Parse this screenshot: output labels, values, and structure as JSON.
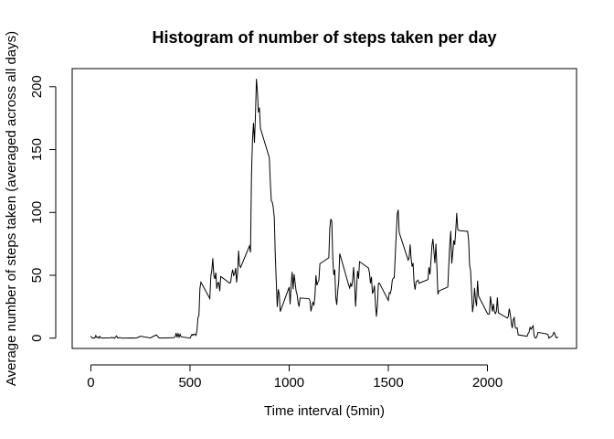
{
  "chart_data": {
    "type": "line",
    "title": "Histogram of number of steps taken per day",
    "x_label": "Time interval (5min)",
    "y_label": "Average number of steps taken (averaged across all days)",
    "x": [
      0,
      5,
      10,
      15,
      20,
      25,
      30,
      35,
      40,
      45,
      50,
      55,
      100,
      105,
      110,
      115,
      120,
      125,
      130,
      135,
      140,
      145,
      150,
      155,
      200,
      230,
      250,
      300,
      330,
      345,
      400,
      420,
      425,
      430,
      435,
      440,
      445,
      450,
      455,
      500,
      505,
      510,
      515,
      520,
      525,
      530,
      535,
      540,
      545,
      550,
      555,
      600,
      605,
      610,
      615,
      620,
      625,
      630,
      635,
      640,
      645,
      650,
      655,
      700,
      705,
      710,
      715,
      720,
      725,
      730,
      735,
      740,
      745,
      750,
      755,
      800,
      805,
      810,
      815,
      820,
      825,
      830,
      835,
      840,
      845,
      850,
      855,
      900,
      905,
      910,
      915,
      920,
      925,
      930,
      935,
      940,
      945,
      950,
      955,
      1000,
      1005,
      1010,
      1015,
      1020,
      1025,
      1030,
      1035,
      1040,
      1045,
      1050,
      1055,
      1100,
      1105,
      1110,
      1115,
      1120,
      1125,
      1130,
      1135,
      1140,
      1145,
      1150,
      1155,
      1200,
      1205,
      1210,
      1215,
      1220,
      1225,
      1230,
      1235,
      1240,
      1245,
      1250,
      1255,
      1300,
      1305,
      1310,
      1315,
      1320,
      1325,
      1330,
      1335,
      1340,
      1345,
      1350,
      1355,
      1400,
      1405,
      1410,
      1415,
      1420,
      1425,
      1430,
      1435,
      1440,
      1445,
      1450,
      1455,
      1500,
      1505,
      1510,
      1515,
      1520,
      1525,
      1530,
      1535,
      1540,
      1545,
      1550,
      1555,
      1600,
      1605,
      1610,
      1615,
      1620,
      1625,
      1630,
      1635,
      1640,
      1645,
      1650,
      1655,
      1700,
      1705,
      1710,
      1715,
      1720,
      1725,
      1730,
      1735,
      1740,
      1745,
      1750,
      1755,
      1800,
      1805,
      1810,
      1815,
      1820,
      1825,
      1830,
      1835,
      1840,
      1845,
      1850,
      1855,
      1900,
      1905,
      1910,
      1915,
      1920,
      1925,
      1930,
      1935,
      1940,
      1945,
      1950,
      1955,
      2000,
      2005,
      2010,
      2015,
      2020,
      2025,
      2030,
      2035,
      2040,
      2045,
      2050,
      2055,
      2100,
      2105,
      2110,
      2115,
      2120,
      2125,
      2130,
      2135,
      2140,
      2145,
      2150,
      2155,
      2200,
      2205,
      2210,
      2215,
      2220,
      2225,
      2230,
      2235,
      2240,
      2245,
      2250,
      2255,
      2300,
      2305,
      2310,
      2315,
      2320,
      2325,
      2330,
      2335,
      2340,
      2345,
      2350,
      2355
    ],
    "series": [
      {
        "name": "steps",
        "color": "#000000",
        "values": [
          1.7,
          0.3,
          0.1,
          0.2,
          0.1,
          2.1,
          0.5,
          0.9,
          0,
          1.5,
          0.3,
          0.1,
          0.3,
          0.7,
          0.2,
          0.3,
          0,
          1.1,
          1.8,
          0.2,
          0.2,
          0.4,
          0.3,
          0,
          0.2,
          0.1,
          1.5,
          0.2,
          2.6,
          0.1,
          0.3,
          0.4,
          1.1,
          4.1,
          0.7,
          3.5,
          0.8,
          3.1,
          1.1,
          0,
          1.6,
          3.0,
          2.2,
          3.3,
          3.0,
          2.1,
          6.1,
          16,
          18.3,
          39.5,
          44.5,
          31.5,
          49.3,
          53.8,
          63.5,
          50,
          47.1,
          52.2,
          39.3,
          44,
          44.2,
          37.4,
          49,
          43.8,
          44.4,
          50.5,
          54.5,
          49.9,
          50.9,
          55.7,
          44.3,
          52.3,
          69.5,
          57.8,
          56.2,
          73.4,
          68.2,
          129.4,
          157.5,
          171.2,
          155.4,
          177.3,
          206.2,
          195.9,
          179.6,
          183.4,
          167,
          143.5,
          124,
          109.1,
          108.1,
          103.7,
          95.9,
          66.2,
          45.2,
          24.8,
          38.8,
          35,
          21.1,
          40.6,
          27,
          42.4,
          52.7,
          38.9,
          50.8,
          44.3,
          37.4,
          34.7,
          28.3,
          25.1,
          31.9,
          31.4,
          29.7,
          21.3,
          25.5,
          28.4,
          26.5,
          33.4,
          50,
          42,
          44.6,
          46,
          59.2,
          63.9,
          87.7,
          94.8,
          92.8,
          63.4,
          50.2,
          54.5,
          32.4,
          26.5,
          37.7,
          45.1,
          67.3,
          42.3,
          39.9,
          43.3,
          41,
          46.2,
          56.4,
          42.8,
          25.1,
          40,
          53.5,
          47.3,
          60.8,
          55.8,
          52,
          43.6,
          48.7,
          35.5,
          37.5,
          41.8,
          27.5,
          17.1,
          26.1,
          43.6,
          43.8,
          30,
          36.1,
          35.5,
          38.8,
          46,
          47.8,
          48.1,
          65.3,
          82.9,
          98.7,
          102.1,
          84,
          62.1,
          64.1,
          74.5,
          63.2,
          56.9,
          59.8,
          43.9,
          38.6,
          44.7,
          45.5,
          46.2,
          43.7,
          46.6,
          56.3,
          50.7,
          61.2,
          73.4,
          79,
          68.9,
          59.7,
          75.1,
          56.5,
          34.8,
          37.5,
          40.7,
          58,
          74.7,
          85.3,
          59.3,
          67.8,
          77.7,
          74.2,
          85.3,
          99.5,
          86.6,
          85.6,
          84.9,
          77.8,
          58,
          53.4,
          36.3,
          20.7,
          27.4,
          40,
          30.2,
          25.5,
          45.7,
          33.5,
          19.6,
          19,
          19.3,
          33.3,
          26.8,
          21.2,
          27.3,
          21.3,
          19.5,
          21.3,
          32.3,
          20.2,
          15.9,
          17.2,
          23.5,
          19.2,
          12.5,
          8,
          14.7,
          16.3,
          8.7,
          7.8,
          8.1,
          2.6,
          1.5,
          3.7,
          4.8,
          8.5,
          7.1,
          8.7,
          9.8,
          2.2,
          0.3,
          0.1,
          1.6,
          4.6,
          3.3,
          2.8,
          0,
          0.8,
          1,
          1.6,
          2.6,
          4.7,
          3.3,
          0.6,
          0.2,
          1.1
        ]
      }
    ],
    "xlim": [
      -94.2,
      2449.2
    ],
    "xticks": [
      0,
      500,
      1000,
      1500,
      2000
    ],
    "ylim": [
      -8.2,
      214.4
    ],
    "yticks": [
      0,
      50,
      100,
      150,
      200
    ]
  }
}
